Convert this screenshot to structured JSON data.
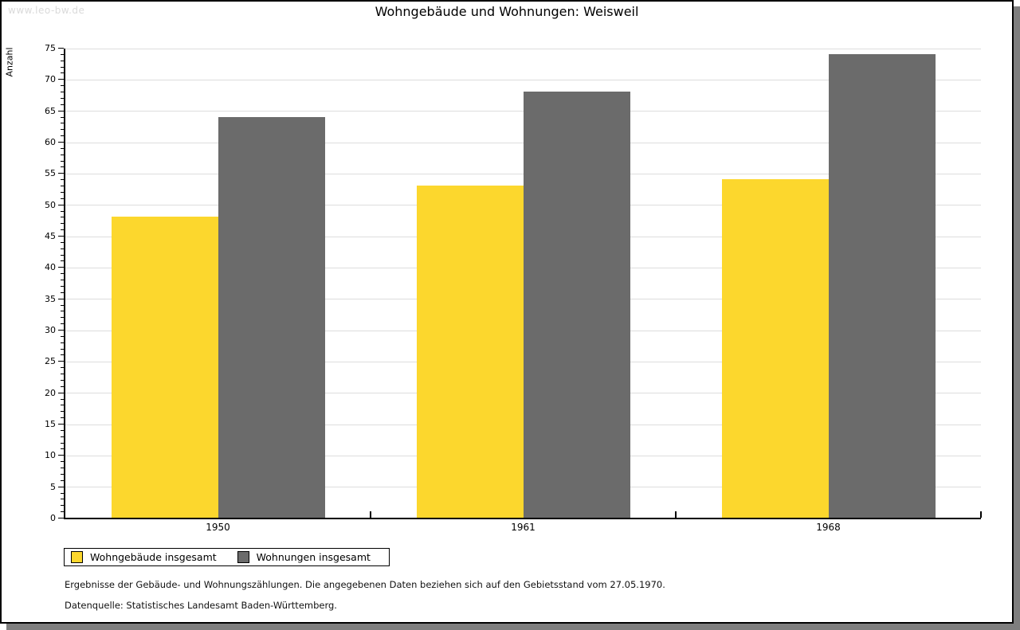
{
  "page": {
    "watermark": "www.leo-bw.de",
    "footnote_line1": "Ergebnisse der Gebäude- und Wohnungszählungen. Die angegebenen Daten beziehen sich auf den Gebietsstand vom 27.05.1970.",
    "footnote_line2": "Datenquelle: Statistisches Landesamt Baden-Württemberg."
  },
  "chart_data": {
    "type": "bar",
    "title": "Wohngebäude und Wohnungen: Weisweil",
    "ylabel": "Anzahl",
    "xlabel": "",
    "categories": [
      "1950",
      "1961",
      "1968"
    ],
    "series": [
      {
        "name": "Wohngebäude insgesamt",
        "color": "#FCD72D",
        "values": [
          48,
          53,
          54
        ]
      },
      {
        "name": "Wohnungen insgesamt",
        "color": "#6B6B6B",
        "values": [
          64,
          68,
          74
        ]
      }
    ],
    "ylim": [
      0,
      75
    ],
    "ytick_step": 5,
    "minor_tick_step": 1,
    "grid": true,
    "legend_position": "bottom-left",
    "colors": {
      "axis": "#000000",
      "gridline": "#DDDDDD",
      "background": "#FFFFFF",
      "shadow": "#7E7E7E",
      "watermark": "#DADADA"
    }
  }
}
